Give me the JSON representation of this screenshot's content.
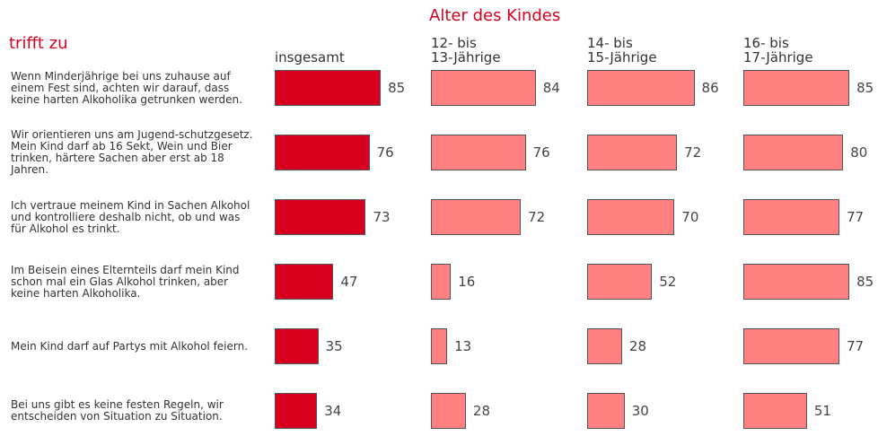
{
  "chart_data": {
    "type": "bar",
    "orientation": "horizontal",
    "title": "Alter des Kindes",
    "subtitle": "trifft zu",
    "categories": [
      "Wenn Minderjährige bei uns zuhause auf einem Fest sind, achten wir darauf, dass keine harten Alkoholika getrunken werden.",
      "Wir orientieren uns am Jugend-schutzgesetz. Mein Kind darf ab 16 Sekt, Wein und Bier trinken, härtere Sachen aber erst ab 18 Jahren.",
      "Ich vertraue meinem Kind in Sachen Alkohol und kontrolliere deshalb nicht, ob und was für Alkohol es trinkt.",
      "Im Beisein eines Elternteils darf mein Kind schon mal ein Glas Alkohol trinken, aber keine harten Alkoholika.",
      "Mein Kind darf auf Partys mit Alkohol feiern.",
      "Bei uns gibt es keine festen Regeln, wir entscheiden von Situation zu Situation."
    ],
    "series": [
      {
        "name": "insgesamt",
        "color": "#d9001f",
        "values": [
          85,
          76,
          73,
          47,
          35,
          34
        ]
      },
      {
        "name": "12- bis\n13-Jährige",
        "color": "#ff8080",
        "values": [
          84,
          76,
          72,
          16,
          13,
          28
        ]
      },
      {
        "name": "14- bis\n15-Jährige",
        "color": "#ff8080",
        "values": [
          86,
          72,
          70,
          52,
          28,
          30
        ]
      },
      {
        "name": "16- bis\n17-Jährige",
        "color": "#ff8080",
        "values": [
          85,
          80,
          77,
          85,
          77,
          51
        ]
      }
    ]
  }
}
